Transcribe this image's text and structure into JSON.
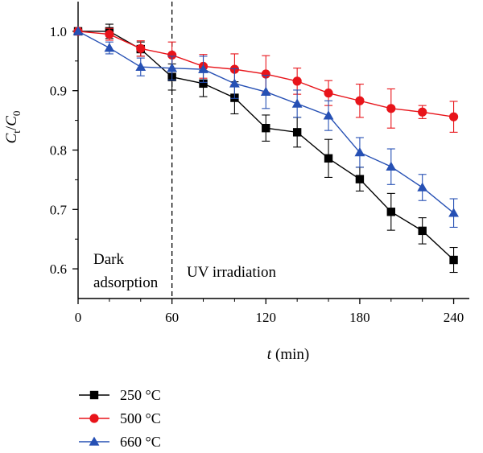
{
  "chart_data": {
    "type": "line",
    "xlabel_italic": "t",
    "xlabel_unit": "(min)",
    "ylabel": {
      "main": "C",
      "sub1": "t",
      "slash": "/",
      "main2": "C",
      "sub2": "0"
    },
    "xlim": [
      0,
      250
    ],
    "ylim": [
      0.55,
      1.05
    ],
    "xticks": [
      0,
      60,
      120,
      180,
      240
    ],
    "xtick_labels": [
      "0",
      "60",
      "120",
      "180",
      "240"
    ],
    "yticks": [
      0.6,
      0.7,
      0.8,
      0.9,
      1.0
    ],
    "ytick_labels": [
      "0.6",
      "0.7",
      "0.8",
      "0.9",
      "1.0"
    ],
    "divider_x": 60,
    "annotations": {
      "dark_line1": "Dark",
      "dark_line2": "adsorption",
      "uv": "UV irradiation"
    },
    "legend_position": "below-left",
    "series": [
      {
        "name": "250 °C",
        "color": "#000000",
        "marker": "square",
        "x": [
          0,
          20,
          40,
          60,
          80,
          100,
          120,
          140,
          160,
          180,
          200,
          220,
          240
        ],
        "y": [
          1.0,
          1.0,
          0.97,
          0.923,
          0.912,
          0.888,
          0.837,
          0.83,
          0.786,
          0.751,
          0.696,
          0.664,
          0.615
        ],
        "err": [
          0.0,
          0.012,
          0.012,
          0.022,
          0.022,
          0.027,
          0.022,
          0.025,
          0.032,
          0.02,
          0.031,
          0.022,
          0.021
        ]
      },
      {
        "name": "500 °C",
        "color": "#e8141a",
        "marker": "circle",
        "x": [
          0,
          20,
          40,
          60,
          80,
          100,
          120,
          140,
          160,
          180,
          200,
          220,
          240
        ],
        "y": [
          1.0,
          0.995,
          0.971,
          0.96,
          0.941,
          0.936,
          0.928,
          0.916,
          0.896,
          0.883,
          0.87,
          0.864,
          0.856
        ],
        "err": [
          0.0,
          0.01,
          0.013,
          0.022,
          0.02,
          0.026,
          0.031,
          0.022,
          0.021,
          0.028,
          0.033,
          0.011,
          0.026
        ]
      },
      {
        "name": "660 °C",
        "color": "#2650b4",
        "marker": "triangle",
        "x": [
          0,
          20,
          40,
          60,
          80,
          100,
          120,
          140,
          160,
          180,
          200,
          220,
          240
        ],
        "y": [
          1.0,
          0.972,
          0.94,
          0.938,
          0.936,
          0.912,
          0.898,
          0.878,
          0.858,
          0.796,
          0.772,
          0.737,
          0.694
        ],
        "err": [
          0.0,
          0.01,
          0.015,
          0.02,
          0.022,
          0.025,
          0.028,
          0.023,
          0.025,
          0.025,
          0.03,
          0.022,
          0.024
        ]
      }
    ]
  }
}
